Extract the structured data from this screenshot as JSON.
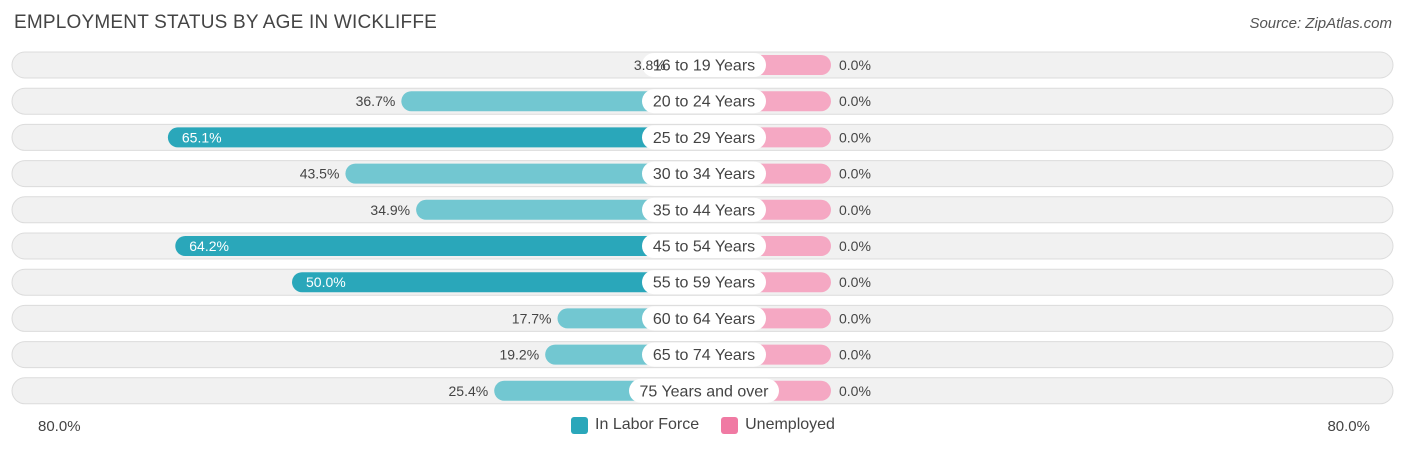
{
  "title": "EMPLOYMENT STATUS BY AGE IN WICKLIFFE",
  "source": "Source: ZipAtlas.com",
  "colors": {
    "labor_strong": "#2aa7ba",
    "labor_light": "#72c7d1",
    "unemployed": "#f5a8c3",
    "unemployed_legend": "#f07aa3",
    "row_bg": "#f1f1f1",
    "row_border": "#dcdcdc"
  },
  "axis": {
    "left_label": "80.0%",
    "right_label": "80.0%"
  },
  "legend": [
    {
      "label": "In Labor Force",
      "color": "#2aa7ba"
    },
    {
      "label": "Unemployed",
      "color": "#f07aa3"
    }
  ],
  "chart_data": {
    "type": "bar",
    "orientation": "horizontal-diverging",
    "title": "EMPLOYMENT STATUS BY AGE IN WICKLIFFE",
    "xlim": [
      -80,
      80
    ],
    "categories": [
      "16 to 19 Years",
      "20 to 24 Years",
      "25 to 29 Years",
      "30 to 34 Years",
      "35 to 44 Years",
      "45 to 54 Years",
      "55 to 59 Years",
      "60 to 64 Years",
      "65 to 74 Years",
      "75 Years and over"
    ],
    "series": [
      {
        "name": "In Labor Force",
        "values": [
          3.8,
          36.7,
          65.1,
          43.5,
          34.9,
          64.2,
          50.0,
          17.7,
          19.2,
          25.4
        ],
        "labels": [
          "3.8%",
          "36.7%",
          "65.1%",
          "43.5%",
          "34.9%",
          "64.2%",
          "50.0%",
          "17.7%",
          "19.2%",
          "25.4%"
        ]
      },
      {
        "name": "Unemployed",
        "values": [
          0.0,
          0.0,
          0.0,
          0.0,
          0.0,
          0.0,
          0.0,
          0.0,
          0.0,
          0.0
        ],
        "labels": [
          "0.0%",
          "0.0%",
          "0.0%",
          "0.0%",
          "0.0%",
          "0.0%",
          "0.0%",
          "0.0%",
          "0.0%",
          "0.0%"
        ]
      }
    ],
    "legend_position": "bottom-center"
  }
}
